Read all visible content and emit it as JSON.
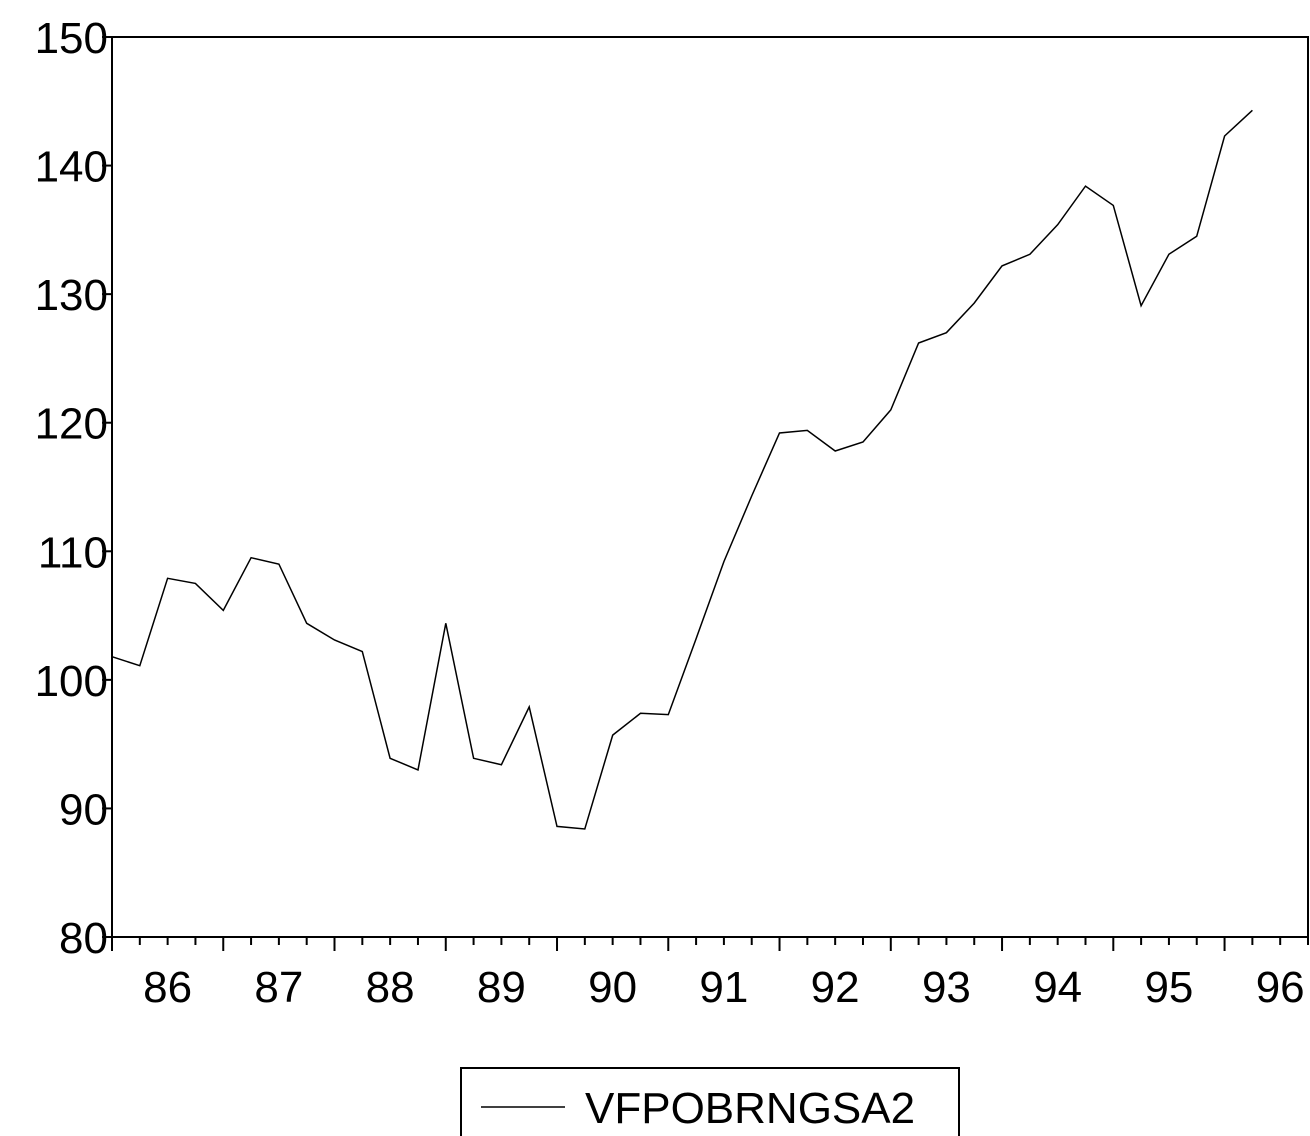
{
  "chart_data": {
    "type": "line",
    "title": "",
    "xlabel": "",
    "ylabel": "",
    "ylim": [
      80,
      150
    ],
    "yticks": [
      80,
      90,
      100,
      110,
      120,
      130,
      140,
      150
    ],
    "xticks": [
      "86",
      "87",
      "88",
      "89",
      "90",
      "91",
      "92",
      "93",
      "94",
      "95",
      "96"
    ],
    "xlim": [
      1986,
      1996.75
    ],
    "grid": false,
    "legend": "bottom-center",
    "series": [
      {
        "name": "VFPOBRNGSA2",
        "color": "#000000",
        "x": [
          1986.0,
          1986.25,
          1986.5,
          1986.75,
          1987.0,
          1987.25,
          1987.5,
          1987.75,
          1988.0,
          1988.25,
          1988.5,
          1988.75,
          1989.0,
          1989.25,
          1989.5,
          1989.75,
          1990.0,
          1990.25,
          1990.5,
          1990.75,
          1991.0,
          1991.25,
          1991.5,
          1991.75,
          1992.0,
          1992.25,
          1992.5,
          1992.75,
          1993.0,
          1993.25,
          1993.5,
          1993.75,
          1994.0,
          1994.25,
          1994.5,
          1994.75,
          1995.0,
          1995.25,
          1995.5,
          1995.75,
          1996.0,
          1996.25
        ],
        "values": [
          101.8,
          101.1,
          107.9,
          107.5,
          105.4,
          109.5,
          109.0,
          104.4,
          103.1,
          102.2,
          93.9,
          93.0,
          104.4,
          93.9,
          93.4,
          97.9,
          88.6,
          88.4,
          95.7,
          97.4,
          97.3,
          103.2,
          109.2,
          114.3,
          119.2,
          119.4,
          117.8,
          118.5,
          121.0,
          126.2,
          127.0,
          129.3,
          132.2,
          133.1,
          135.4,
          138.4,
          136.9,
          129.1,
          133.1,
          134.5,
          142.3,
          144.3
        ]
      }
    ]
  }
}
